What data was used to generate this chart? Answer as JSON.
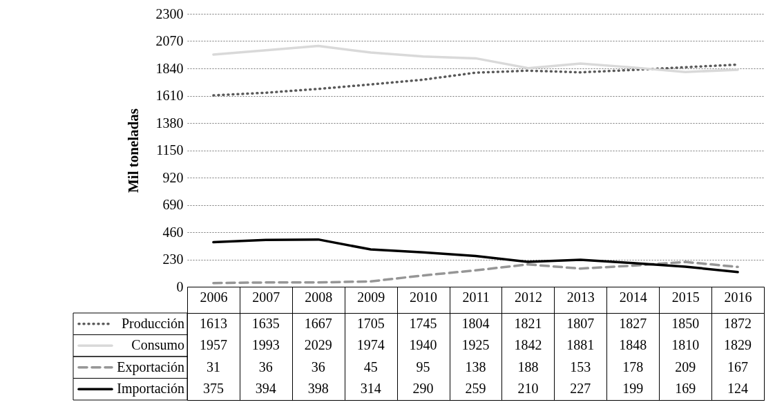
{
  "chart_data": {
    "type": "line",
    "ylabel": "Mil toneladas",
    "categories": [
      "2006",
      "2007",
      "2008",
      "2009",
      "2010",
      "2011",
      "2012",
      "2013",
      "2014",
      "2015",
      "2016"
    ],
    "series": [
      {
        "name": "Producción",
        "color": "#595959",
        "line_style": "dotted",
        "values": [
          1613,
          1635,
          1667,
          1705,
          1745,
          1804,
          1821,
          1807,
          1827,
          1850,
          1872
        ]
      },
      {
        "name": "Consumo",
        "color": "#d9d9d9",
        "line_style": "solid",
        "values": [
          1957,
          1993,
          2029,
          1974,
          1940,
          1925,
          1842,
          1881,
          1848,
          1810,
          1829
        ]
      },
      {
        "name": "Exportación",
        "color": "#969696",
        "line_style": "dashed",
        "values": [
          31,
          36,
          36,
          45,
          95,
          138,
          188,
          153,
          178,
          209,
          167
        ]
      },
      {
        "name": "Importación",
        "color": "#000000",
        "line_style": "solid",
        "values": [
          375,
          394,
          398,
          314,
          290,
          259,
          210,
          227,
          199,
          169,
          124
        ]
      }
    ],
    "ylim": [
      0,
      2300
    ],
    "yticks": [
      0,
      230,
      460,
      690,
      920,
      1150,
      1380,
      1610,
      1840,
      2070,
      2300
    ],
    "grid": "y",
    "legend": "bottom",
    "data_labels": true
  }
}
